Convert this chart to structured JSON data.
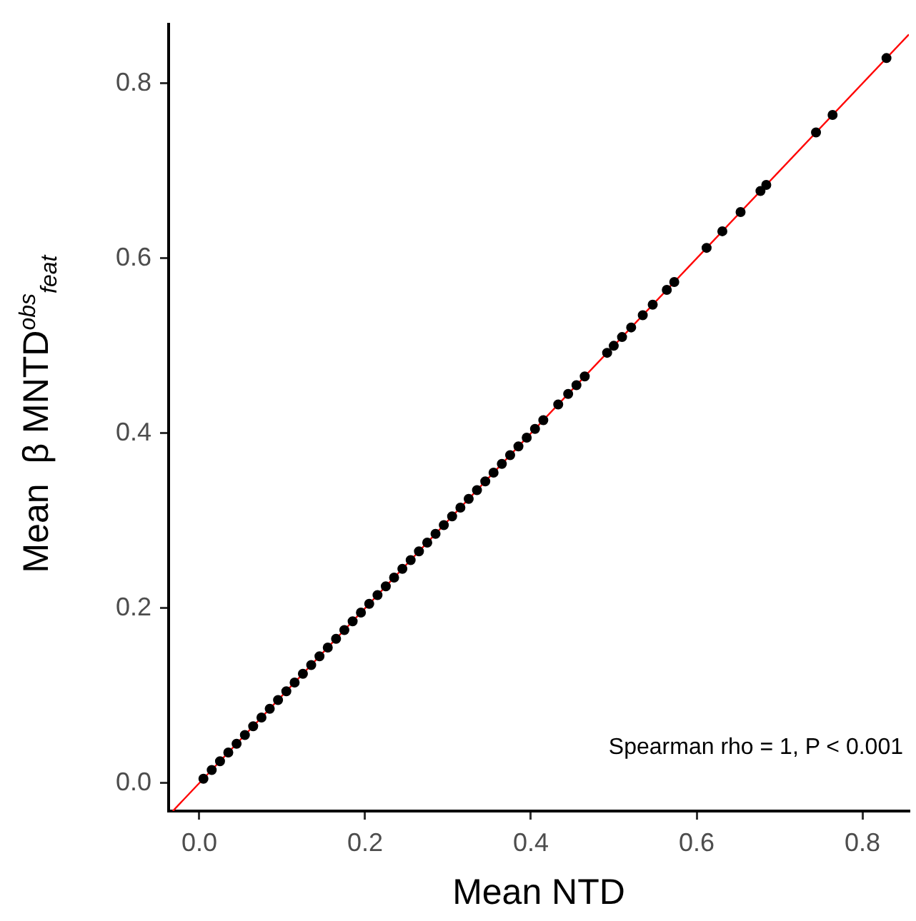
{
  "chart_data": {
    "type": "scatter",
    "xlabel": "Mean NTD",
    "ylabel": "Mean  β MNTD$^{obs}$$_{feat}$",
    "xlim": [
      -0.037,
      0.856
    ],
    "ylim": [
      -0.032,
      0.868
    ],
    "xticks": [
      {
        "value": 0,
        "label": "0.0"
      },
      0.2,
      0.4,
      0.6,
      0.8
    ],
    "yticks": [
      {
        "value": 0,
        "label": "0.0"
      },
      0.2,
      0.4,
      0.6,
      0.8
    ],
    "grid": false,
    "legend": false,
    "annotations": [
      "Spearman rho = 1, P < 0.001"
    ],
    "series": [
      {
        "marker": "circle",
        "color": "#000000",
        "x": [
          0.005,
          0.015,
          0.025,
          0.035,
          0.045,
          0.055,
          0.065,
          0.075,
          0.085,
          0.095,
          0.105,
          0.115,
          0.125,
          0.135,
          0.145,
          0.155,
          0.165,
          0.175,
          0.185,
          0.195,
          0.205,
          0.215,
          0.225,
          0.235,
          0.245,
          0.255,
          0.265,
          0.275,
          0.285,
          0.295,
          0.305,
          0.315,
          0.325,
          0.335,
          0.345,
          0.355,
          0.365,
          0.375,
          0.385,
          0.395,
          0.405,
          0.415,
          0.433,
          0.445,
          0.455,
          0.465,
          0.492,
          0.5,
          0.51,
          0.521,
          0.535,
          0.547,
          0.564,
          0.573,
          0.612,
          0.631,
          0.653,
          0.677,
          0.684,
          0.744,
          0.764,
          0.829
        ],
        "values": [
          0.005,
          0.015,
          0.025,
          0.035,
          0.045,
          0.055,
          0.065,
          0.075,
          0.085,
          0.095,
          0.105,
          0.115,
          0.125,
          0.135,
          0.145,
          0.155,
          0.165,
          0.175,
          0.185,
          0.195,
          0.205,
          0.215,
          0.225,
          0.235,
          0.245,
          0.255,
          0.265,
          0.275,
          0.285,
          0.295,
          0.305,
          0.315,
          0.325,
          0.335,
          0.345,
          0.355,
          0.365,
          0.375,
          0.385,
          0.395,
          0.405,
          0.415,
          0.433,
          0.445,
          0.455,
          0.465,
          0.492,
          0.5,
          0.51,
          0.521,
          0.535,
          0.547,
          0.564,
          0.573,
          0.612,
          0.631,
          0.653,
          0.677,
          0.684,
          0.744,
          0.764,
          0.829
        ]
      },
      {
        "type": "line",
        "marker": "none",
        "color": "#ff0000",
        "x": [
          -0.032,
          0.856
        ],
        "values": [
          -0.032,
          0.856
        ]
      }
    ]
  }
}
